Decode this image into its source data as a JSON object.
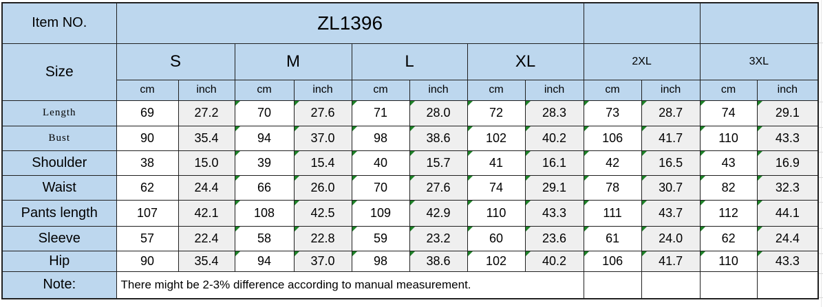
{
  "header": {
    "item_no_label": "Item NO.",
    "item_no_value": "ZL1396",
    "size_label": "Size",
    "units": {
      "cm": "cm",
      "inch": "inch"
    },
    "sizes": [
      {
        "label": "S",
        "marker": false
      },
      {
        "label": "M",
        "marker": true
      },
      {
        "label": "L",
        "marker": true
      },
      {
        "label": "XL",
        "marker": true
      },
      {
        "label": "2XL",
        "marker": true
      },
      {
        "label": "3XL",
        "marker": true
      }
    ]
  },
  "measurements": [
    {
      "label": "Length",
      "serif": true,
      "values": [
        [
          "69",
          "27.2"
        ],
        [
          "70",
          "27.6"
        ],
        [
          "71",
          "28.0"
        ],
        [
          "72",
          "28.3"
        ],
        [
          "73",
          "28.7"
        ],
        [
          "74",
          "29.1"
        ]
      ]
    },
    {
      "label": "Bust",
      "serif": true,
      "values": [
        [
          "90",
          "35.4"
        ],
        [
          "94",
          "37.0"
        ],
        [
          "98",
          "38.6"
        ],
        [
          "102",
          "40.2"
        ],
        [
          "106",
          "41.7"
        ],
        [
          "110",
          "43.3"
        ]
      ]
    },
    {
      "label": "Shoulder",
      "serif": false,
      "values": [
        [
          "38",
          "15.0"
        ],
        [
          "39",
          "15.4"
        ],
        [
          "40",
          "15.7"
        ],
        [
          "41",
          "16.1"
        ],
        [
          "42",
          "16.5"
        ],
        [
          "43",
          "16.9"
        ]
      ]
    },
    {
      "label": "Waist",
      "serif": false,
      "values": [
        [
          "62",
          "24.4"
        ],
        [
          "66",
          "26.0"
        ],
        [
          "70",
          "27.6"
        ],
        [
          "74",
          "29.1"
        ],
        [
          "78",
          "30.7"
        ],
        [
          "82",
          "32.3"
        ]
      ]
    },
    {
      "label": "Pants length",
      "serif": false,
      "values": [
        [
          "107",
          "42.1"
        ],
        [
          "108",
          "42.5"
        ],
        [
          "109",
          "42.9"
        ],
        [
          "110",
          "43.3"
        ],
        [
          "111",
          "43.7"
        ],
        [
          "112",
          "44.1"
        ]
      ]
    },
    {
      "label": "Sleeve",
      "serif": false,
      "values": [
        [
          "57",
          "22.4"
        ],
        [
          "58",
          "22.8"
        ],
        [
          "59",
          "23.2"
        ],
        [
          "60",
          "23.6"
        ],
        [
          "61",
          "24.0"
        ],
        [
          "62",
          "24.4"
        ]
      ]
    },
    {
      "label": "Hip",
      "serif": false,
      "values": [
        [
          "90",
          "35.4"
        ],
        [
          "94",
          "37.0"
        ],
        [
          "98",
          "38.6"
        ],
        [
          "102",
          "40.2"
        ],
        [
          "106",
          "41.7"
        ],
        [
          "110",
          "43.3"
        ]
      ]
    }
  ],
  "note": {
    "label": "Note:",
    "text": "There might be 2-3% difference according to manual measurement."
  },
  "colors": {
    "header_blue": "#BDD7EE",
    "shaded_cell_gray": "#EFEFEF",
    "marker_green": "#1E8228",
    "border": "#1F1F1F"
  }
}
